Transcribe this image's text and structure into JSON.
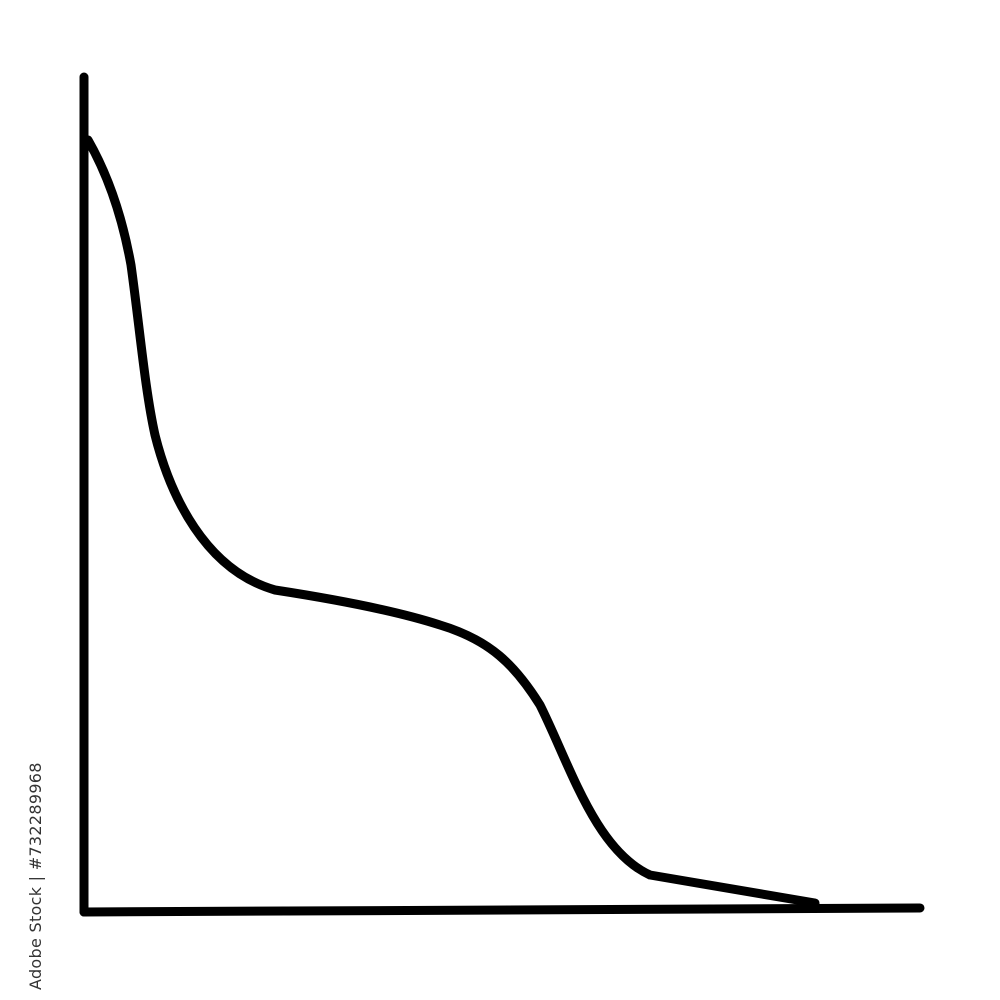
{
  "watermark": {
    "text": "Adobe Stock | #732289968"
  },
  "colors": {
    "line": "#000000",
    "background": "#ffffff"
  },
  "icon": {
    "name": "declining-curve-graph-icon"
  }
}
